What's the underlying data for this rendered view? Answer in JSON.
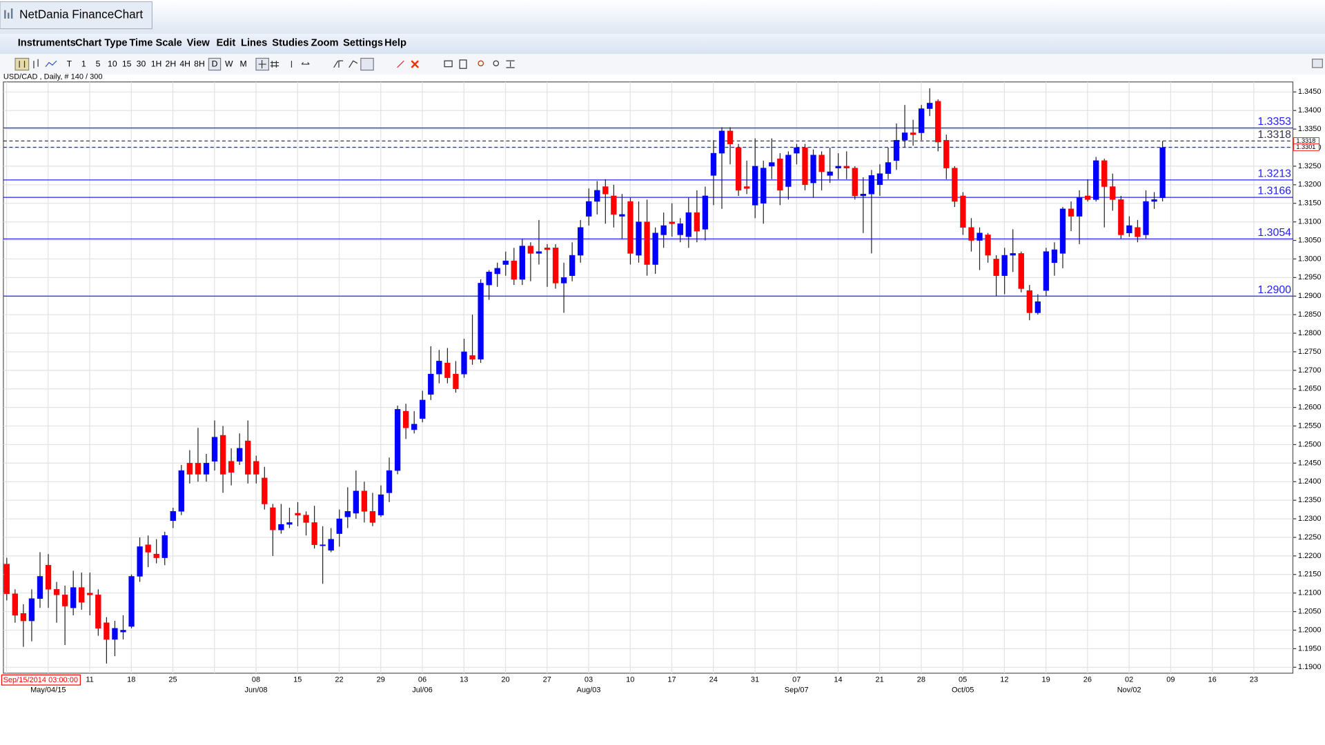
{
  "window": {
    "title": "NetDania FinanceChart"
  },
  "menu": [
    "Instruments",
    "Chart Type",
    "Time Scale",
    "View",
    "Edit",
    "Lines",
    "Studies",
    "Zoom",
    "Settings",
    "Help"
  ],
  "toolbar": [
    "T",
    "1",
    "5",
    "10",
    "15",
    "30",
    "1H",
    "2H",
    "4H",
    "8H",
    "D",
    "W",
    "M"
  ],
  "chart_data": {
    "type": "candlestick",
    "instrument_label": "USD/CAD , Daily, # 140 / 300",
    "start_label": "Sep/15/2014 03:00:00",
    "up_color": "#0000ff",
    "down_color": "#ff0000",
    "grid": true,
    "open": [
      1.2178,
      1.2098,
      1.2045,
      1.2025,
      1.2085,
      1.2175,
      1.211,
      1.2095,
      1.206,
      1.2115,
      1.21,
      1.2095,
      1.202,
      1.1975,
      1.1995,
      1.201,
      1.2145,
      1.223,
      1.2205,
      1.2195,
      1.2295,
      1.232,
      1.245,
      1.245,
      1.242,
      1.2455,
      1.2525,
      1.2455,
      1.2455,
      1.251,
      1.2455,
      1.241,
      1.233,
      1.227,
      1.2285,
      1.2315,
      1.231,
      1.229,
      1.223,
      1.2215,
      1.226,
      1.2305,
      1.2315,
      1.2375,
      1.232,
      1.231,
      1.237,
      1.243,
      1.259,
      1.254,
      1.257,
      1.2635,
      1.269,
      1.272,
      1.269,
      1.269,
      1.274,
      1.273,
      1.293,
      1.296,
      1.2985,
      1.2995,
      1.2945,
      1.3035,
      1.3015,
      1.303,
      1.303,
      1.2935,
      1.2955,
      1.301,
      1.3115,
      1.3155,
      1.3195,
      1.317,
      1.3115,
      1.3155,
      1.301,
      1.31,
      1.2985,
      1.3065,
      1.31,
      1.3065,
      1.306,
      1.3125,
      1.308,
      1.3225,
      1.3285,
      1.3345,
      1.33,
      1.3195,
      1.3145,
      1.315,
      1.325,
      1.327,
      1.3195,
      1.3285,
      1.33,
      1.3205,
      1.328,
      1.3225,
      1.3245,
      1.325,
      1.3245,
      1.317,
      1.3175,
      1.32,
      1.323,
      1.3265,
      1.332,
      1.334,
      1.334,
      1.3405,
      1.3425,
      1.332,
      1.3245,
      1.317,
      1.3085,
      1.305,
      1.3065,
      1.3,
      1.2955,
      1.301,
      1.3015,
      1.2915,
      1.2855,
      1.2915,
      1.299,
      1.3015,
      1.3135,
      1.3115,
      1.317,
      1.316,
      1.3265,
      1.3195,
      1.316,
      1.307,
      1.3085,
      1.3065,
      1.3155,
      1.3165
    ],
    "high": [
      1.2195,
      1.211,
      1.207,
      1.211,
      1.221,
      1.2205,
      1.213,
      1.212,
      1.216,
      1.2155,
      1.2155,
      1.211,
      1.2035,
      1.2025,
      1.204,
      1.215,
      1.225,
      1.2255,
      1.2245,
      1.2265,
      1.233,
      1.2445,
      1.2485,
      1.2545,
      1.2475,
      1.2565,
      1.255,
      1.249,
      1.253,
      1.2565,
      1.247,
      1.244,
      1.234,
      1.234,
      1.233,
      1.2345,
      1.232,
      1.2335,
      1.228,
      1.2275,
      1.2325,
      1.2385,
      1.243,
      1.24,
      1.237,
      1.239,
      1.2465,
      1.2605,
      1.261,
      1.259,
      1.2645,
      1.2765,
      1.2755,
      1.276,
      1.2725,
      1.2785,
      1.285,
      1.2945,
      1.297,
      1.299,
      1.302,
      1.303,
      1.3055,
      1.3045,
      1.3105,
      1.304,
      1.304,
      1.299,
      1.3045,
      1.3105,
      1.319,
      1.321,
      1.3215,
      1.32,
      1.3175,
      1.3165,
      1.3155,
      1.316,
      1.3085,
      1.3125,
      1.315,
      1.311,
      1.3165,
      1.3185,
      1.3195,
      1.332,
      1.3355,
      1.3355,
      1.331,
      1.3265,
      1.3325,
      1.3265,
      1.3325,
      1.3285,
      1.329,
      1.331,
      1.331,
      1.3295,
      1.329,
      1.33,
      1.3285,
      1.329,
      1.325,
      1.322,
      1.324,
      1.3255,
      1.33,
      1.3365,
      1.3415,
      1.3375,
      1.3415,
      1.346,
      1.343,
      1.3335,
      1.325,
      1.318,
      1.311,
      1.3085,
      1.307,
      1.301,
      1.303,
      1.308,
      1.302,
      1.293,
      1.2905,
      1.303,
      1.3045,
      1.314,
      1.3155,
      1.3185,
      1.3215,
      1.3275,
      1.327,
      1.323,
      1.317,
      1.3115,
      1.3105,
      1.3185,
      1.318,
      1.3318
    ],
    "low": [
      1.208,
      1.202,
      1.1955,
      1.197,
      1.206,
      1.206,
      1.202,
      1.196,
      1.204,
      1.2055,
      1.204,
      1.1985,
      1.191,
      1.193,
      1.1975,
      1.2005,
      1.213,
      1.217,
      1.218,
      1.2175,
      1.2275,
      1.231,
      1.2395,
      1.24,
      1.24,
      1.243,
      1.237,
      1.239,
      1.2445,
      1.2395,
      1.2395,
      1.2325,
      1.22,
      1.226,
      1.2275,
      1.228,
      1.2255,
      1.222,
      1.2125,
      1.221,
      1.2225,
      1.2275,
      1.23,
      1.229,
      1.228,
      1.2305,
      1.2345,
      1.242,
      1.2515,
      1.253,
      1.256,
      1.262,
      1.2665,
      1.2665,
      1.264,
      1.268,
      1.2715,
      1.272,
      1.289,
      1.2925,
      1.2955,
      1.293,
      1.293,
      1.294,
      1.2985,
      1.2925,
      1.292,
      1.2855,
      1.294,
      1.299,
      1.309,
      1.312,
      1.3095,
      1.3085,
      1.3055,
      1.2985,
      1.299,
      1.2955,
      1.296,
      1.303,
      1.306,
      1.3045,
      1.303,
      1.3045,
      1.305,
      1.3145,
      1.3135,
      1.3255,
      1.317,
      1.3175,
      1.311,
      1.3095,
      1.3215,
      1.3145,
      1.316,
      1.3255,
      1.3185,
      1.3165,
      1.3185,
      1.3205,
      1.3215,
      1.3215,
      1.316,
      1.307,
      1.3015,
      1.317,
      1.3215,
      1.324,
      1.33,
      1.3305,
      1.332,
      1.3385,
      1.329,
      1.3215,
      1.314,
      1.3065,
      1.302,
      1.297,
      1.299,
      1.29,
      1.2905,
      1.2965,
      1.291,
      1.2835,
      1.285,
      1.29,
      1.2955,
      1.2975,
      1.3075,
      1.304,
      1.3155,
      1.3155,
      1.3085,
      1.313,
      1.3055,
      1.306,
      1.3045,
      1.3055,
      1.3135,
      1.3155
    ],
    "close": [
      1.2098,
      1.204,
      1.2025,
      1.2085,
      1.2145,
      1.211,
      1.2095,
      1.2065,
      1.2115,
      1.2075,
      1.2095,
      1.2005,
      1.1975,
      1.2005,
      1.2,
      1.2145,
      1.2225,
      1.221,
      1.2195,
      1.2255,
      1.232,
      1.243,
      1.242,
      1.242,
      1.245,
      1.252,
      1.242,
      1.2425,
      1.249,
      1.242,
      1.242,
      1.234,
      1.227,
      1.2285,
      1.229,
      1.231,
      1.229,
      1.223,
      1.223,
      1.2245,
      1.23,
      1.232,
      1.2375,
      1.232,
      1.229,
      1.2365,
      1.243,
      1.2595,
      1.2545,
      1.2555,
      1.262,
      1.269,
      1.2725,
      1.268,
      1.265,
      1.275,
      1.273,
      1.2935,
      1.2965,
      1.2975,
      1.2995,
      1.2945,
      1.3035,
      1.3015,
      1.302,
      1.3025,
      1.2935,
      1.295,
      1.301,
      1.3085,
      1.3155,
      1.3185,
      1.3175,
      1.312,
      1.312,
      1.3015,
      1.31,
      1.2985,
      1.307,
      1.309,
      1.3095,
      1.3095,
      1.3125,
      1.3075,
      1.317,
      1.3285,
      1.3345,
      1.331,
      1.3185,
      1.319,
      1.325,
      1.3245,
      1.326,
      1.3185,
      1.328,
      1.33,
      1.32,
      1.328,
      1.3235,
      1.3235,
      1.325,
      1.3245,
      1.317,
      1.3175,
      1.3225,
      1.323,
      1.326,
      1.332,
      1.334,
      1.3335,
      1.3405,
      1.342,
      1.3315,
      1.3245,
      1.3155,
      1.3085,
      1.305,
      1.307,
      1.301,
      1.2955,
      1.301,
      1.3015,
      1.292,
      1.2855,
      1.2885,
      1.302,
      1.3025,
      1.3135,
      1.3115,
      1.3165,
      1.316,
      1.3265,
      1.3195,
      1.316,
      1.3065,
      1.309,
      1.306,
      1.3155,
      1.316,
      1.33
    ],
    "ylim": [
      1.1884,
      1.3477
    ],
    "yticks": [
      {
        "value": 1.19,
        "label": "1.1900"
      },
      {
        "value": 1.195,
        "label": "1.1950"
      },
      {
        "value": 1.2,
        "label": "1.2000"
      },
      {
        "value": 1.205,
        "label": "1.2050"
      },
      {
        "value": 1.21,
        "label": "1.2100"
      },
      {
        "value": 1.215,
        "label": "1.2150"
      },
      {
        "value": 1.22,
        "label": "1.2200"
      },
      {
        "value": 1.225,
        "label": "1.2250"
      },
      {
        "value": 1.23,
        "label": "1.2300"
      },
      {
        "value": 1.235,
        "label": "1.2350"
      },
      {
        "value": 1.24,
        "label": "1.2400"
      },
      {
        "value": 1.245,
        "label": "1.2450"
      },
      {
        "value": 1.25,
        "label": "1.2500"
      },
      {
        "value": 1.255,
        "label": "1.2550"
      },
      {
        "value": 1.26,
        "label": "1.2600"
      },
      {
        "value": 1.265,
        "label": "1.2650"
      },
      {
        "value": 1.27,
        "label": "1.2700"
      },
      {
        "value": 1.275,
        "label": "1.2750"
      },
      {
        "value": 1.28,
        "label": "1.2800"
      },
      {
        "value": 1.285,
        "label": "1.2850"
      },
      {
        "value": 1.29,
        "label": "1.2900"
      },
      {
        "value": 1.295,
        "label": "1.2950"
      },
      {
        "value": 1.3,
        "label": "1.3000"
      },
      {
        "value": 1.305,
        "label": "1.3050"
      },
      {
        "value": 1.31,
        "label": "1.3100"
      },
      {
        "value": 1.315,
        "label": "1.3150"
      },
      {
        "value": 1.32,
        "label": "1.3200"
      },
      {
        "value": 1.325,
        "label": "1.3250"
      },
      {
        "value": 1.33,
        "label": "1.3300"
      },
      {
        "value": 1.335,
        "label": "1.3350"
      },
      {
        "value": 1.34,
        "label": "1.3400"
      },
      {
        "value": 1.345,
        "label": "1.3450"
      }
    ],
    "week_labels": [
      null,
      null,
      "11",
      "18",
      "25",
      null,
      "08",
      "15",
      "22",
      "29",
      "06",
      "13",
      "20",
      "27",
      "03",
      "10",
      "17",
      "24",
      "31",
      "07",
      "14",
      "21",
      "28",
      "05",
      "12",
      "19",
      "26",
      "02",
      "09",
      "16",
      "23"
    ],
    "month_labels": [
      null,
      "May/04/15",
      null,
      null,
      null,
      null,
      "Jun/08",
      null,
      null,
      null,
      "Jul/06",
      null,
      null,
      null,
      "Aug/03",
      null,
      null,
      null,
      null,
      "Sep/07",
      null,
      null,
      null,
      "Oct/05",
      null,
      null,
      null,
      "Nov/02",
      null,
      null,
      null
    ],
    "levels": [
      {
        "value": 1.3353,
        "label": "1.3353"
      },
      {
        "value": 1.3318,
        "label": "1.3318",
        "dashed": true,
        "color": "#333355"
      },
      {
        "value": 1.3213,
        "label": "1.3213"
      },
      {
        "value": 1.3166,
        "label": "1.3166"
      },
      {
        "value": 1.3054,
        "label": "1.3054"
      },
      {
        "value": 1.29,
        "label": "1.2900"
      }
    ],
    "price_tags": [
      {
        "value": 1.3318,
        "label": "1.3318"
      },
      {
        "value": 1.3301,
        "label": "1.3301",
        "dashed": true
      }
    ]
  }
}
